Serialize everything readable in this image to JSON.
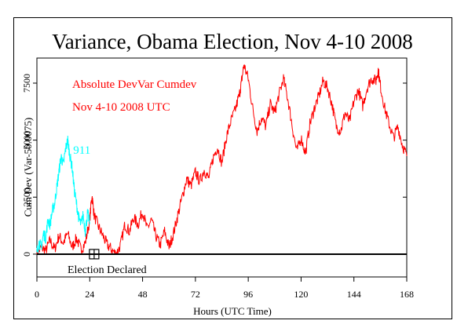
{
  "chart_data": {
    "type": "line",
    "title": "Variance, Obama Election, Nov 4-10 2008",
    "xlabel": "Hours (UTC Time)",
    "ylabel": "Cum Dev (Var-50.0075)",
    "xlim": [
      0,
      168
    ],
    "ylim": [
      -1000,
      8600
    ],
    "xticks": [
      "0",
      "24",
      "48",
      "72",
      "96",
      "120",
      "144",
      "168"
    ],
    "yticks": [
      "0",
      "2500",
      "5000",
      "7500"
    ],
    "legend_lines": [
      "Absolute DevVar Cumdev",
      "Nov 4-10 2008 UTC"
    ],
    "annotations": {
      "election_declared": "Election Declared",
      "election_declared_hour": 26,
      "nine_eleven_label": "911"
    },
    "series": [
      {
        "name": "Absolute DevVar Cumdev",
        "color": "#ff0000",
        "x": [
          0,
          2,
          4,
          6,
          8,
          10,
          12,
          14,
          16,
          18,
          20,
          22,
          24,
          25,
          26,
          28,
          30,
          32,
          34,
          36,
          38,
          40,
          42,
          44,
          46,
          48,
          50,
          52,
          54,
          56,
          58,
          60,
          62,
          64,
          66,
          68,
          70,
          72,
          74,
          76,
          78,
          80,
          82,
          84,
          86,
          88,
          90,
          92,
          93,
          94,
          96,
          98,
          100,
          102,
          104,
          106,
          108,
          110,
          112,
          114,
          116,
          118,
          120,
          122,
          124,
          126,
          128,
          130,
          132,
          134,
          136,
          138,
          140,
          142,
          144,
          146,
          148,
          150,
          152,
          154,
          155,
          156,
          158,
          160,
          162,
          164,
          166,
          168
        ],
        "y": [
          0,
          300,
          150,
          600,
          200,
          800,
          500,
          900,
          300,
          700,
          200,
          500,
          1500,
          2600,
          1700,
          1200,
          800,
          400,
          200,
          0,
          400,
          1300,
          1000,
          1600,
          1300,
          1900,
          1100,
          1500,
          800,
          400,
          1000,
          300,
          900,
          1700,
          2500,
          3300,
          3000,
          3600,
          3200,
          3700,
          3300,
          4200,
          4700,
          4000,
          5100,
          5800,
          6300,
          7000,
          7600,
          8300,
          7700,
          6400,
          5400,
          6000,
          5600,
          6600,
          6200,
          7000,
          7700,
          6800,
          5600,
          4500,
          5100,
          4400,
          5700,
          6400,
          6900,
          7600,
          7300,
          6600,
          5600,
          5400,
          6200,
          5800,
          6700,
          7200,
          6500,
          7300,
          7700,
          7600,
          8100,
          7400,
          6400,
          5700,
          5100,
          5600,
          4800,
          4300
        ]
      },
      {
        "name": "911",
        "color": "#00ffff",
        "x": [
          0,
          1,
          2,
          3,
          4,
          5,
          6,
          7,
          8,
          9,
          10,
          11,
          12,
          13,
          14,
          15,
          16,
          17,
          18,
          19,
          20,
          21,
          22,
          23,
          24
        ],
        "y": [
          100,
          500,
          300,
          900,
          700,
          1500,
          1300,
          1900,
          2200,
          2900,
          3600,
          4300,
          3900,
          4600,
          5000,
          4300,
          3800,
          2800,
          2200,
          1600,
          1300,
          1700,
          1000,
          1800,
          1400
        ]
      }
    ]
  }
}
